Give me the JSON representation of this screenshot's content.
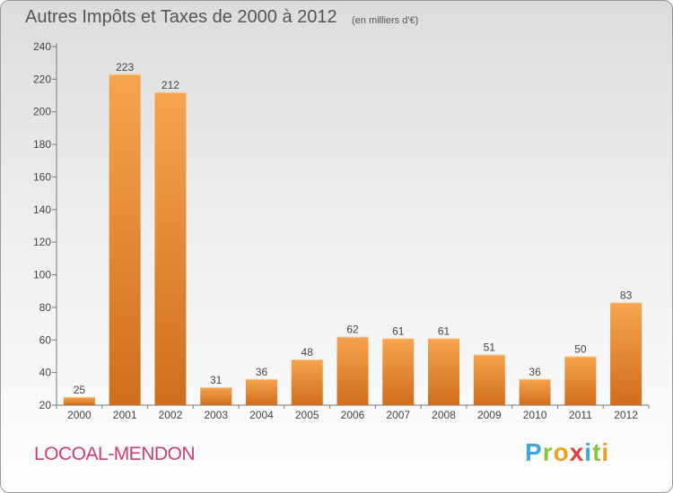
{
  "header": {
    "title": "Autres Impôts et Taxes de 2000 à 2012",
    "subtitle": "(en milliers d'€)"
  },
  "footer": {
    "place": "LOCOAL-MENDON",
    "brand_letters": [
      "P",
      "r",
      "o",
      "x",
      "i",
      "t",
      "i"
    ],
    "brand_colors": [
      "#3aa7dd",
      "#8ac43f",
      "#f0a020",
      "#e2413b",
      "#3aa7dd",
      "#8ac43f",
      "#f0a020"
    ]
  },
  "colors": {
    "bar_light": "#f7a44f",
    "bar_dark": "#cf6e1c",
    "axis": "#777777",
    "text": "#444444",
    "place": "#c8406f"
  },
  "chart_data": {
    "type": "bar",
    "categories": [
      "2000",
      "2001",
      "2002",
      "2003",
      "2004",
      "2005",
      "2006",
      "2007",
      "2008",
      "2009",
      "2010",
      "2011",
      "2012"
    ],
    "values": [
      25,
      223,
      212,
      31,
      36,
      48,
      62,
      61,
      61,
      51,
      36,
      50,
      83
    ],
    "ylim": [
      20,
      240
    ],
    "yticks": [
      20,
      40,
      60,
      80,
      100,
      120,
      140,
      160,
      180,
      200,
      220,
      240
    ],
    "grid": false,
    "data_labels": true
  }
}
